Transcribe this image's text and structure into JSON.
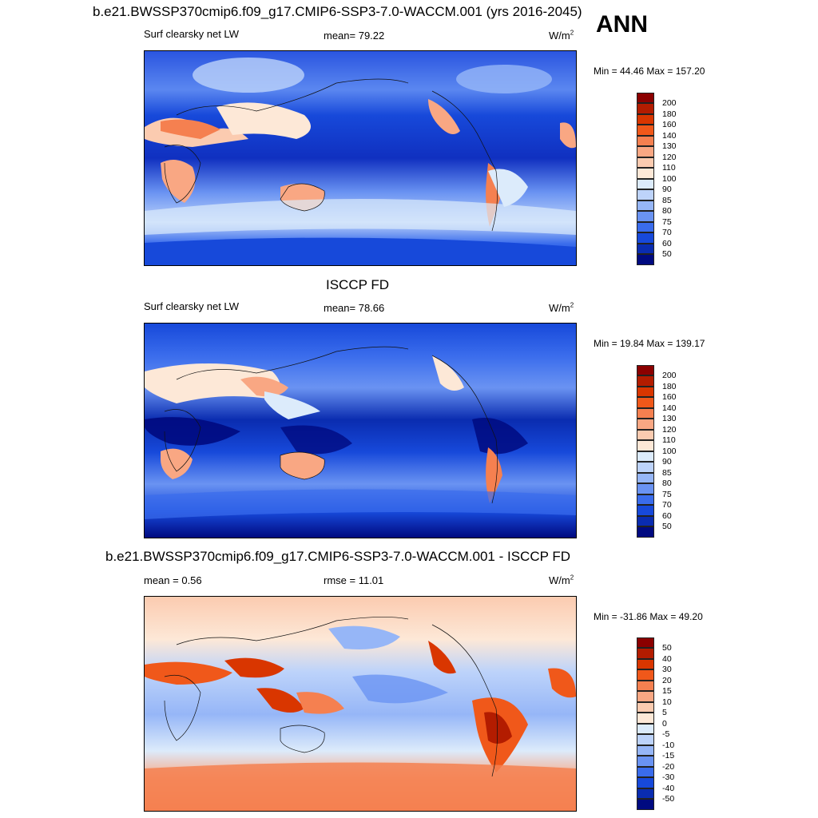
{
  "annual_label": "ANN",
  "panels": [
    {
      "title": "b.e21.BWSSP370cmip6.f09_g17.CMIP6-SSP3-7.0-WACCM.001 (yrs 2016-2045)",
      "left_label": "Surf clearsky net LW",
      "center_label": "mean=  79.22",
      "units_base": "W/m",
      "units_exp": "2",
      "minmax": "Min =  44.46 Max = 157.20",
      "colorbar": [
        "200",
        "180",
        "160",
        "140",
        "130",
        "120",
        "110",
        "100",
        "90",
        "85",
        "80",
        "75",
        "70",
        "60",
        "50"
      ],
      "colors": [
        "#8b0000",
        "#b31c00",
        "#d93600",
        "#f0581a",
        "#f58050",
        "#f9a783",
        "#fbcbb0",
        "#fde8d7",
        "#dcebfb",
        "#bdd3fa",
        "#96b6f7",
        "#6a93f2",
        "#3a6cec",
        "#1749da",
        "#0a2cb0",
        "#000a80"
      ]
    },
    {
      "title": "ISCCP FD",
      "left_label": "Surf clearsky net LW",
      "center_label": "mean=  78.66",
      "units_base": "W/m",
      "units_exp": "2",
      "minmax": "Min =  19.84 Max = 139.17",
      "colorbar": [
        "200",
        "180",
        "160",
        "140",
        "130",
        "120",
        "110",
        "100",
        "90",
        "85",
        "80",
        "75",
        "70",
        "60",
        "50"
      ],
      "colors": [
        "#8b0000",
        "#b31c00",
        "#d93600",
        "#f0581a",
        "#f58050",
        "#f9a783",
        "#fbcbb0",
        "#fde8d7",
        "#dcebfb",
        "#bdd3fa",
        "#96b6f7",
        "#6a93f2",
        "#3a6cec",
        "#1749da",
        "#0a2cb0",
        "#000a80"
      ]
    },
    {
      "title": "b.e21.BWSSP370cmip6.f09_g17.CMIP6-SSP3-7.0-WACCM.001 - ISCCP FD",
      "left_label": "mean =   0.56",
      "center_label": "rmse =  11.01",
      "units_base": "W/m",
      "units_exp": "2",
      "minmax": "Min = -31.86 Max =  49.20",
      "colorbar": [
        "50",
        "40",
        "30",
        "20",
        "15",
        "10",
        "5",
        "0",
        "-5",
        "-10",
        "-15",
        "-20",
        "-30",
        "-40",
        "-50"
      ],
      "colors": [
        "#8b0000",
        "#b31c00",
        "#d93600",
        "#f0581a",
        "#f58050",
        "#f9a783",
        "#fbcbb0",
        "#fde8d7",
        "#dcebfb",
        "#bdd3fa",
        "#96b6f7",
        "#6a93f2",
        "#3a6cec",
        "#1749da",
        "#0a2cb0",
        "#000a80"
      ]
    }
  ]
}
